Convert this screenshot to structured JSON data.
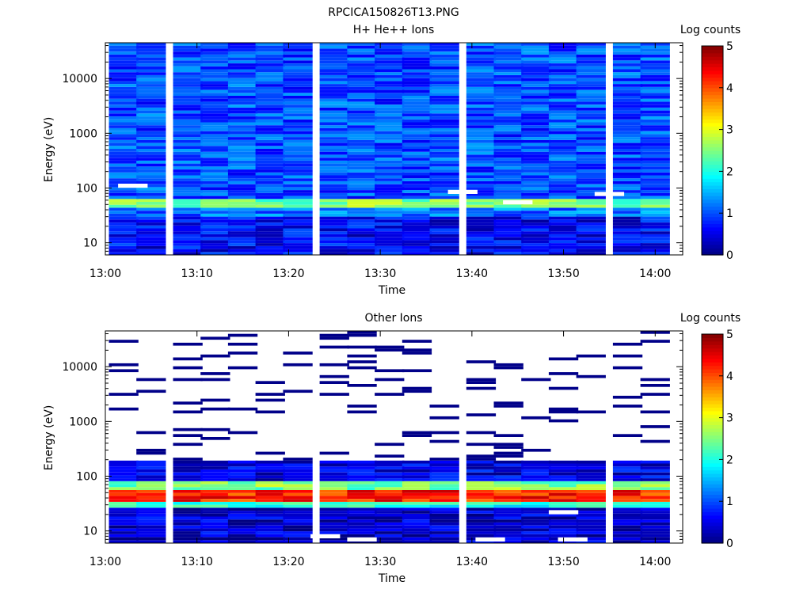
{
  "figure": {
    "title": "RPCICA150826T13.PNG",
    "colormap_stops": [
      "#00007f",
      "#0000ff",
      "#0080ff",
      "#00ffff",
      "#80ff80",
      "#ffff00",
      "#ff8000",
      "#ff0000",
      "#7f0000"
    ],
    "missing_color": "#ffffff"
  },
  "chart_data": [
    {
      "type": "heatmap",
      "title": "H+ He++ Ions",
      "xlabel": "Time",
      "ylabel": "Energy (eV)",
      "x_range": [
        "13:00",
        "14:03"
      ],
      "x_ticks": [
        "13:00",
        "13:10",
        "13:20",
        "13:30",
        "13:40",
        "13:50",
        "14:00"
      ],
      "y_scale": "log",
      "y_range": [
        6,
        45000
      ],
      "y_ticks": [
        "10",
        "100",
        "1000",
        "10000"
      ],
      "time_columns": [
        "13:02",
        "13:05",
        "13:09",
        "13:12",
        "13:15",
        "13:18",
        "13:21",
        "13:25",
        "13:28",
        "13:31",
        "13:34",
        "13:37",
        "13:41",
        "13:44",
        "13:47",
        "13:50",
        "13:53",
        "13:57",
        "14:00"
      ],
      "colorbar": {
        "label": "Log counts",
        "range": [
          0,
          5
        ],
        "ticks": [
          "0",
          "1",
          "2",
          "3",
          "4",
          "5"
        ]
      },
      "energy_profile": {
        "description_bands": [
          {
            "energy_range": [
              6,
              30
            ],
            "log_counts": 0.6
          },
          {
            "energy_range": [
              30,
              45
            ],
            "log_counts": 1.2
          },
          {
            "energy_range": [
              45,
              60
            ],
            "log_counts": 2.5
          },
          {
            "energy_range": [
              60,
              45000
            ],
            "log_counts": 1.0
          }
        ]
      },
      "missing_bins": [
        {
          "time": "13:03",
          "energy": 110
        },
        {
          "time": "13:39",
          "energy": 85
        },
        {
          "time": "13:45",
          "energy": 55
        },
        {
          "time": "13:55",
          "energy": 78
        }
      ]
    },
    {
      "type": "heatmap",
      "title": "Other Ions",
      "xlabel": "Time",
      "ylabel": "Energy (eV)",
      "x_range": [
        "13:00",
        "14:03"
      ],
      "x_ticks": [
        "13:00",
        "13:10",
        "13:20",
        "13:30",
        "13:40",
        "13:50",
        "14:00"
      ],
      "y_scale": "log",
      "y_range": [
        6,
        45000
      ],
      "y_ticks": [
        "10",
        "100",
        "1000",
        "10000"
      ],
      "time_columns": [
        "13:02",
        "13:05",
        "13:09",
        "13:12",
        "13:15",
        "13:18",
        "13:21",
        "13:25",
        "13:28",
        "13:31",
        "13:34",
        "13:37",
        "13:41",
        "13:44",
        "13:47",
        "13:50",
        "13:53",
        "13:57",
        "14:00"
      ],
      "colorbar": {
        "label": "Log counts",
        "range": [
          0,
          5
        ],
        "ticks": [
          "0",
          "1",
          "2",
          "3",
          "4",
          "5"
        ]
      },
      "energy_profile": {
        "description_bands": [
          {
            "energy_range": [
              6,
              25
            ],
            "log_counts": 0.4
          },
          {
            "energy_range": [
              25,
              32
            ],
            "log_counts": 2.0
          },
          {
            "energy_range": [
              32,
              55
            ],
            "log_counts": 4.2
          },
          {
            "energy_range": [
              55,
              80
            ],
            "log_counts": 2.5
          },
          {
            "energy_range": [
              80,
              200
            ],
            "log_counts": 0.5
          },
          {
            "energy_range": [
              200,
              45000
            ],
            "log_counts": "sparse"
          }
        ]
      },
      "missing_bins": [
        {
          "time": "13:24",
          "energy": 8
        },
        {
          "time": "13:28",
          "energy": 7
        },
        {
          "time": "13:42",
          "energy": 7
        },
        {
          "time": "13:50",
          "energy": 22
        },
        {
          "time": "13:51",
          "energy": 7
        }
      ]
    }
  ]
}
